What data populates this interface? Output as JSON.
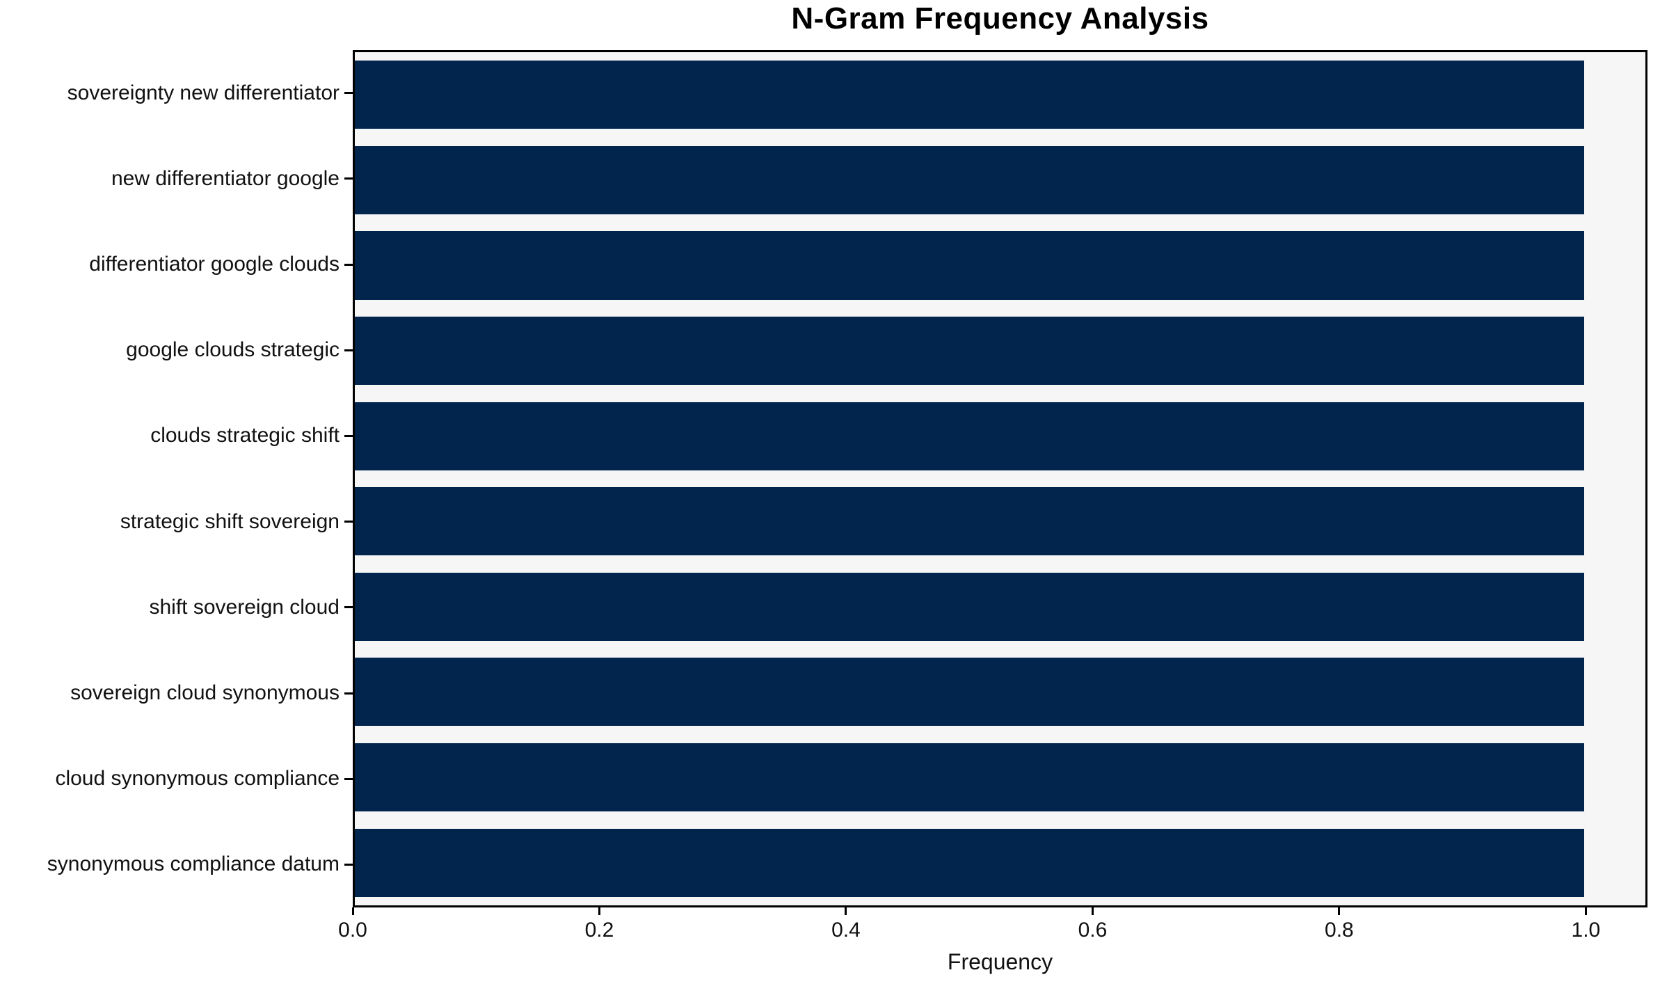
{
  "chart_data": {
    "type": "bar",
    "orientation": "horizontal",
    "title": "N-Gram Frequency Analysis",
    "xlabel": "Frequency",
    "ylabel": "",
    "categories": [
      "sovereignty new differentiator",
      "new differentiator google",
      "differentiator google clouds",
      "google clouds strategic",
      "clouds strategic shift",
      "strategic shift sovereign",
      "shift sovereign cloud",
      "sovereign cloud synonymous",
      "cloud synonymous compliance",
      "synonymous compliance datum"
    ],
    "values": [
      1.0,
      1.0,
      1.0,
      1.0,
      1.0,
      1.0,
      1.0,
      1.0,
      1.0,
      1.0
    ],
    "xlim": [
      0,
      1.05
    ],
    "xticks": [
      0.0,
      0.2,
      0.4,
      0.6,
      0.8,
      1.0
    ],
    "xtick_labels": [
      "0.0",
      "0.2",
      "0.4",
      "0.6",
      "0.8",
      "1.0"
    ],
    "grid": false,
    "legend": null,
    "colors": {
      "bar": "#02254e",
      "plot_background": "#f6f6f6",
      "figure_background": "#ffffff",
      "frame": "#000000",
      "text": "#111111"
    }
  }
}
